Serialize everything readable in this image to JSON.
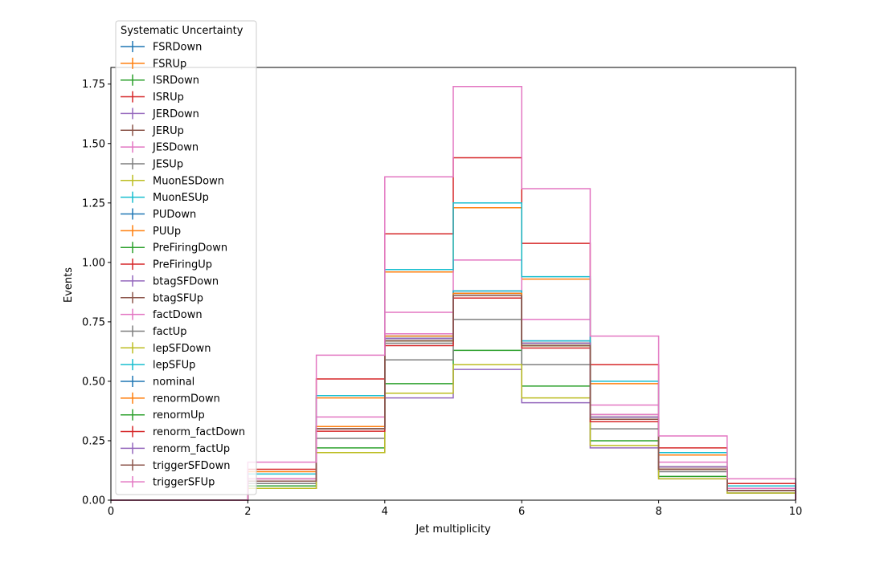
{
  "chart_data": {
    "type": "step",
    "xlabel": "Jet multiplicity",
    "ylabel": "Events",
    "xlim": [
      0,
      10
    ],
    "ylim": [
      0,
      1.82
    ],
    "x_ticks": [
      "0",
      "2",
      "4",
      "6",
      "8",
      "10"
    ],
    "y_ticks": [
      "0.00",
      "0.25",
      "0.50",
      "0.75",
      "1.00",
      "1.25",
      "1.50",
      "1.75"
    ],
    "bin_edges": [
      0,
      1,
      2,
      3,
      4,
      5,
      6,
      7,
      8,
      9,
      10
    ],
    "legend": {
      "title": "Systematic Uncertainty",
      "placement": "upper-left, outside axes"
    },
    "series": [
      {
        "name": "FSRDown",
        "color": "#1f77b4",
        "values": [
          0,
          0,
          0.08,
          0.3,
          0.68,
          0.87,
          0.66,
          0.34,
          0.13,
          0.04
        ]
      },
      {
        "name": "FSRUp",
        "color": "#ff7f0e",
        "values": [
          0,
          0,
          0.12,
          0.43,
          0.96,
          1.23,
          0.93,
          0.49,
          0.19,
          0.06
        ]
      },
      {
        "name": "ISRDown",
        "color": "#2ca02c",
        "values": [
          0,
          0,
          0.06,
          0.22,
          0.49,
          0.63,
          0.48,
          0.25,
          0.1,
          0.03
        ]
      },
      {
        "name": "ISRUp",
        "color": "#d62728",
        "values": [
          0,
          0,
          0.13,
          0.51,
          1.12,
          1.44,
          1.08,
          0.57,
          0.22,
          0.07
        ]
      },
      {
        "name": "JERDown",
        "color": "#9467bd",
        "values": [
          0,
          0,
          0.05,
          0.2,
          0.43,
          0.55,
          0.41,
          0.22,
          0.09,
          0.03
        ]
      },
      {
        "name": "JERUp",
        "color": "#8c564b",
        "values": [
          0,
          0,
          0.09,
          0.31,
          0.67,
          0.86,
          0.65,
          0.36,
          0.14,
          0.05
        ]
      },
      {
        "name": "JESDown",
        "color": "#e377c2",
        "values": [
          0,
          0,
          0.09,
          0.35,
          0.79,
          1.01,
          0.76,
          0.4,
          0.16,
          0.05
        ]
      },
      {
        "name": "JESUp",
        "color": "#7f7f7f",
        "values": [
          0,
          0,
          0.07,
          0.26,
          0.59,
          0.76,
          0.57,
          0.3,
          0.12,
          0.04
        ]
      },
      {
        "name": "MuonESDown",
        "color": "#bcbd22",
        "values": [
          0,
          0,
          0.05,
          0.2,
          0.45,
          0.57,
          0.43,
          0.23,
          0.09,
          0.03
        ]
      },
      {
        "name": "MuonESUp",
        "color": "#17becf",
        "values": [
          0,
          0,
          0.11,
          0.44,
          0.97,
          1.25,
          0.94,
          0.5,
          0.2,
          0.06
        ]
      },
      {
        "name": "PUDown",
        "color": "#1f77b4",
        "values": [
          0,
          0,
          0.08,
          0.31,
          0.69,
          0.88,
          0.67,
          0.35,
          0.14,
          0.04
        ]
      },
      {
        "name": "PUUp",
        "color": "#ff7f0e",
        "values": [
          0,
          0,
          0.08,
          0.3,
          0.67,
          0.86,
          0.65,
          0.34,
          0.13,
          0.04
        ]
      },
      {
        "name": "PreFiringDown",
        "color": "#2ca02c",
        "values": [
          0,
          0,
          0.08,
          0.31,
          0.68,
          0.87,
          0.66,
          0.35,
          0.14,
          0.04
        ]
      },
      {
        "name": "PreFiringUp",
        "color": "#d62728",
        "values": [
          0,
          0,
          0.08,
          0.3,
          0.67,
          0.86,
          0.65,
          0.34,
          0.13,
          0.04
        ]
      },
      {
        "name": "btagSFDown",
        "color": "#9467bd",
        "values": [
          0,
          0,
          0.08,
          0.3,
          0.68,
          0.87,
          0.66,
          0.34,
          0.13,
          0.04
        ]
      },
      {
        "name": "btagSFUp",
        "color": "#8c564b",
        "values": [
          0,
          0,
          0.08,
          0.31,
          0.68,
          0.87,
          0.66,
          0.35,
          0.14,
          0.04
        ]
      },
      {
        "name": "factDown",
        "color": "#e377c2",
        "values": [
          0,
          0,
          0.08,
          0.31,
          0.7,
          0.88,
          0.67,
          0.36,
          0.14,
          0.04
        ]
      },
      {
        "name": "factUp",
        "color": "#7f7f7f",
        "values": [
          0,
          0,
          0.08,
          0.3,
          0.66,
          0.85,
          0.65,
          0.34,
          0.13,
          0.04
        ]
      },
      {
        "name": "lepSFDown",
        "color": "#bcbd22",
        "values": [
          0,
          0,
          0.08,
          0.3,
          0.67,
          0.86,
          0.65,
          0.34,
          0.13,
          0.04
        ]
      },
      {
        "name": "lepSFUp",
        "color": "#17becf",
        "values": [
          0,
          0,
          0.08,
          0.31,
          0.69,
          0.88,
          0.67,
          0.35,
          0.14,
          0.04
        ]
      },
      {
        "name": "nominal",
        "color": "#1f77b4",
        "values": [
          0,
          0,
          0.08,
          0.31,
          0.68,
          0.87,
          0.66,
          0.35,
          0.14,
          0.04
        ]
      },
      {
        "name": "renormDown",
        "color": "#ff7f0e",
        "values": [
          0,
          0,
          0.08,
          0.31,
          0.69,
          0.87,
          0.66,
          0.35,
          0.14,
          0.04
        ]
      },
      {
        "name": "renormUp",
        "color": "#2ca02c",
        "values": [
          0,
          0,
          0.08,
          0.3,
          0.67,
          0.86,
          0.65,
          0.34,
          0.13,
          0.04
        ]
      },
      {
        "name": "renorm_factDown",
        "color": "#d62728",
        "values": [
          0,
          0,
          0.08,
          0.29,
          0.65,
          0.85,
          0.64,
          0.33,
          0.13,
          0.04
        ]
      },
      {
        "name": "renorm_factUp",
        "color": "#9467bd",
        "values": [
          0,
          0,
          0.08,
          0.3,
          0.68,
          0.86,
          0.66,
          0.35,
          0.14,
          0.04
        ]
      },
      {
        "name": "triggerSFDown",
        "color": "#8c564b",
        "values": [
          0,
          0,
          0.08,
          0.3,
          0.67,
          0.86,
          0.65,
          0.34,
          0.13,
          0.04
        ]
      },
      {
        "name": "triggerSFUp",
        "color": "#e377c2",
        "values": [
          0,
          0,
          0.16,
          0.61,
          1.36,
          1.74,
          1.31,
          0.69,
          0.27,
          0.09
        ]
      }
    ]
  }
}
